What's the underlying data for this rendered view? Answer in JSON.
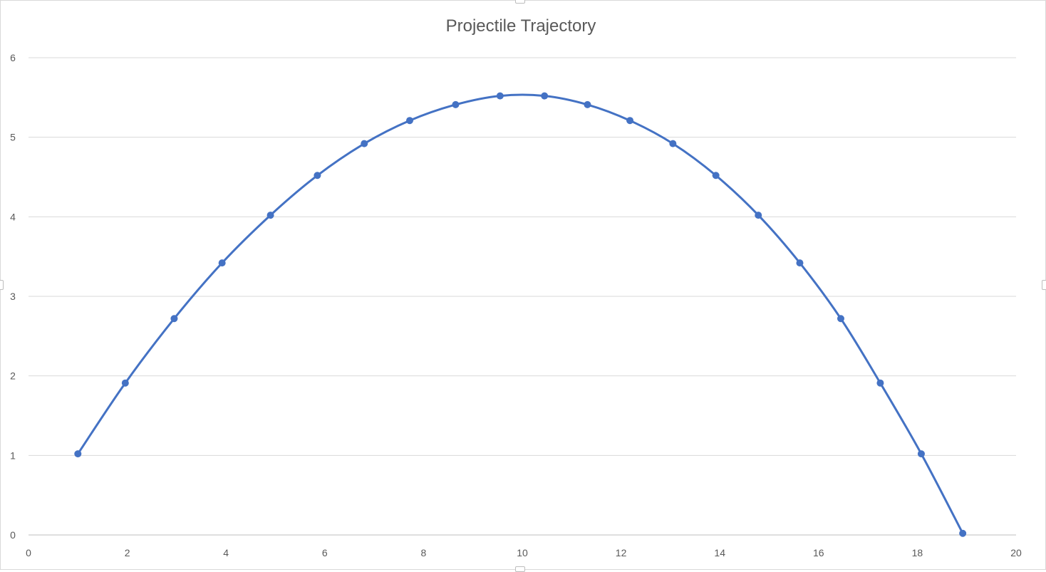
{
  "chart_data": {
    "type": "scatter",
    "title": "Projectile Trajectory",
    "xlabel": "",
    "ylabel": "",
    "xlim": [
      0,
      20
    ],
    "ylim": [
      0,
      6
    ],
    "x_ticks": [
      "0",
      "2",
      "4",
      "6",
      "8",
      "10",
      "12",
      "14",
      "16",
      "18",
      "20"
    ],
    "y_ticks": [
      "0",
      "1",
      "2",
      "3",
      "4",
      "5",
      "6"
    ],
    "grid": true,
    "legend": "none",
    "line_style": "smooth-with-markers",
    "color": "#4472C4",
    "series": [
      {
        "x": [
          1.0,
          1.96,
          2.95,
          3.92,
          4.9,
          5.85,
          6.8,
          7.72,
          8.65,
          9.55,
          10.45,
          11.32,
          12.18,
          13.05,
          13.92,
          14.78,
          15.62,
          16.45,
          17.25,
          18.08,
          18.92
        ],
        "y": [
          1.02,
          1.91,
          2.72,
          3.42,
          4.02,
          4.52,
          4.92,
          5.21,
          5.41,
          5.52,
          5.52,
          5.41,
          5.21,
          4.92,
          4.52,
          4.02,
          3.42,
          2.72,
          1.91,
          1.02,
          0.02
        ]
      }
    ]
  }
}
